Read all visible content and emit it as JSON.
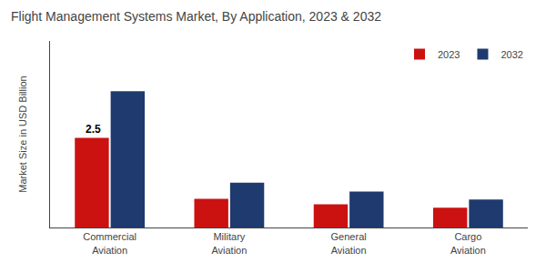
{
  "chart_data": {
    "type": "bar",
    "title": "Flight Management Systems Market, By Application, 2023 & 2032",
    "categories": [
      "Commercial\nAviation",
      "Military\nAviation",
      "General\nAviation",
      "Cargo\nAviation"
    ],
    "series": [
      {
        "name": "2023",
        "color": "#cc1111",
        "values": [
          2.5,
          0.8,
          0.65,
          0.55
        ]
      },
      {
        "name": "2032",
        "color": "#1e3a6e",
        "values": [
          3.8,
          1.25,
          1.0,
          0.78
        ]
      }
    ],
    "ylabel": "Market Size in USD Billion",
    "ylim": [
      0,
      5.2
    ],
    "yticks": [],
    "tick_labels": "x",
    "grid": false,
    "legend": "upper right",
    "annotations": [
      {
        "text": "2.5",
        "x": "Commercial\nAviation",
        "y": 2.5
      }
    ]
  }
}
